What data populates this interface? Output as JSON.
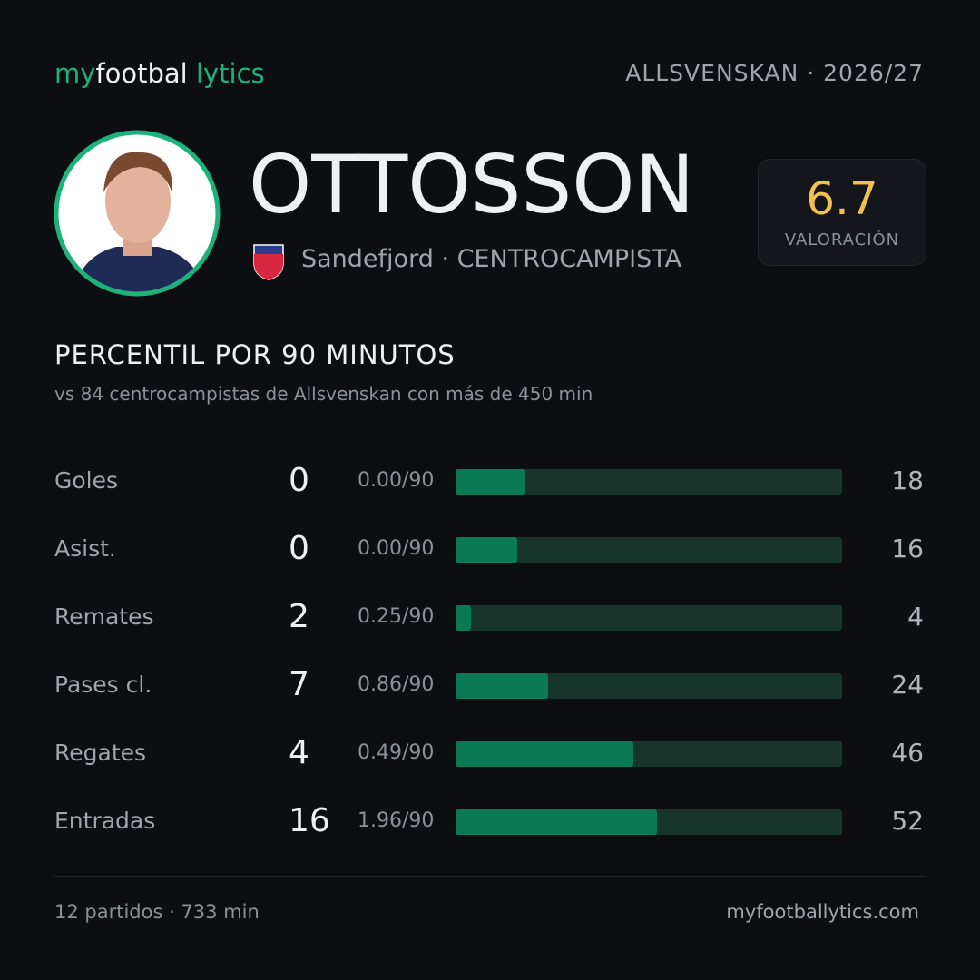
{
  "brand": {
    "my": "my",
    "football": "footbal",
    "lytics": "lytics"
  },
  "league": "ALLSVENSKAN",
  "season": "· 2026/27",
  "player": {
    "name": "OTTOSSON",
    "team": "Sandefjord",
    "position": "· CENTROCAMPISTA"
  },
  "rating": {
    "value": 6.7,
    "label": "VALORACIÓN"
  },
  "section": {
    "title": "PERCENTIL",
    "title2": "POR 90 MINUTOS",
    "subtitle": [
      "vs 84 centrocampistas",
      "de Allsvenskan",
      "con más de 450 min"
    ]
  },
  "stats": {
    "xlim": [
      0,
      100
    ],
    "rows": [
      {
        "label": "Goles",
        "total": 0,
        "per90": "0.00/90",
        "percentile": 18
      },
      {
        "label": "Asist.",
        "total": 0,
        "per90": "0.00/90",
        "percentile": 16
      },
      {
        "label": "Remates",
        "total": 2,
        "per90": "0.25/90",
        "percentile": 4
      },
      {
        "label": "Pases cl.",
        "total": 7,
        "per90": "0.86/90",
        "percentile": 24
      },
      {
        "label": "Regates",
        "total": 4,
        "per90": "0.49/90",
        "percentile": 46
      },
      {
        "label": "Entradas",
        "total": 16,
        "per90": "1.96/90",
        "percentile": 52
      }
    ]
  },
  "footer": {
    "left": "12 partidos · 733 min",
    "right": "myfootballytics.com"
  }
}
